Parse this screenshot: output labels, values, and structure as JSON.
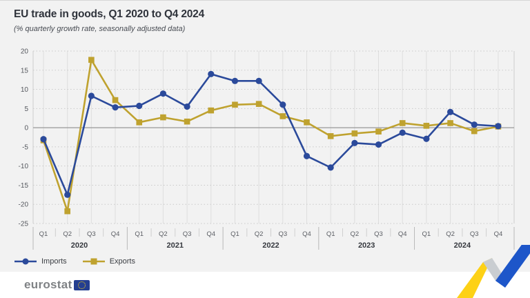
{
  "header": {
    "title": "EU trade in goods, Q1 2020 to Q4 2024",
    "subtitle": "(% quarterly growth rate, seasonally adjusted data)"
  },
  "footer": {
    "logo_text": "eurostat",
    "brand_colors": {
      "flag_blue": "#243e90",
      "star_yellow": "#ffd617"
    },
    "motif_colors": {
      "yellow": "#fdd116",
      "gray": "#c9cdd1",
      "blue": "#1d56c9"
    }
  },
  "chart_data": {
    "type": "line",
    "title": "EU trade in goods, Q1 2020 to Q4 2024",
    "subtitle": "(% quarterly growth rate, seasonally adjusted data)",
    "xlabel": "",
    "ylabel": "",
    "ylim": [
      -25,
      20
    ],
    "y_ticks": [
      -25,
      -20,
      -15,
      -10,
      -5,
      0,
      5,
      10,
      15,
      20
    ],
    "grid": true,
    "legend_position": "bottom-left",
    "years": [
      "2020",
      "2021",
      "2022",
      "2023",
      "2024"
    ],
    "quarter_labels": [
      "Q1",
      "Q2",
      "Q3",
      "Q4"
    ],
    "categories": [
      "2020-Q1",
      "2020-Q2",
      "2020-Q3",
      "2020-Q4",
      "2021-Q1",
      "2021-Q2",
      "2021-Q3",
      "2021-Q4",
      "2022-Q1",
      "2022-Q2",
      "2022-Q3",
      "2022-Q4",
      "2023-Q1",
      "2023-Q2",
      "2023-Q3",
      "2023-Q4",
      "2024-Q1",
      "2024-Q2",
      "2024-Q3",
      "2024-Q4"
    ],
    "series": [
      {
        "name": "Imports",
        "marker": "circle",
        "color": "#2b4a9b",
        "values": [
          -3.0,
          -17.5,
          8.3,
          5.3,
          5.7,
          8.9,
          5.5,
          14.0,
          12.2,
          12.2,
          6.0,
          -7.4,
          -10.4,
          -4.0,
          -4.4,
          -1.3,
          -2.9,
          4.1,
          0.8,
          0.4
        ]
      },
      {
        "name": "Exports",
        "marker": "square",
        "color": "#bfa22f",
        "values": [
          -3.3,
          -21.8,
          17.7,
          7.2,
          1.4,
          2.7,
          1.6,
          4.5,
          6.0,
          6.2,
          3.0,
          1.4,
          -2.2,
          -1.5,
          -1.0,
          1.2,
          0.5,
          1.2,
          -0.9,
          0.3
        ]
      }
    ]
  }
}
